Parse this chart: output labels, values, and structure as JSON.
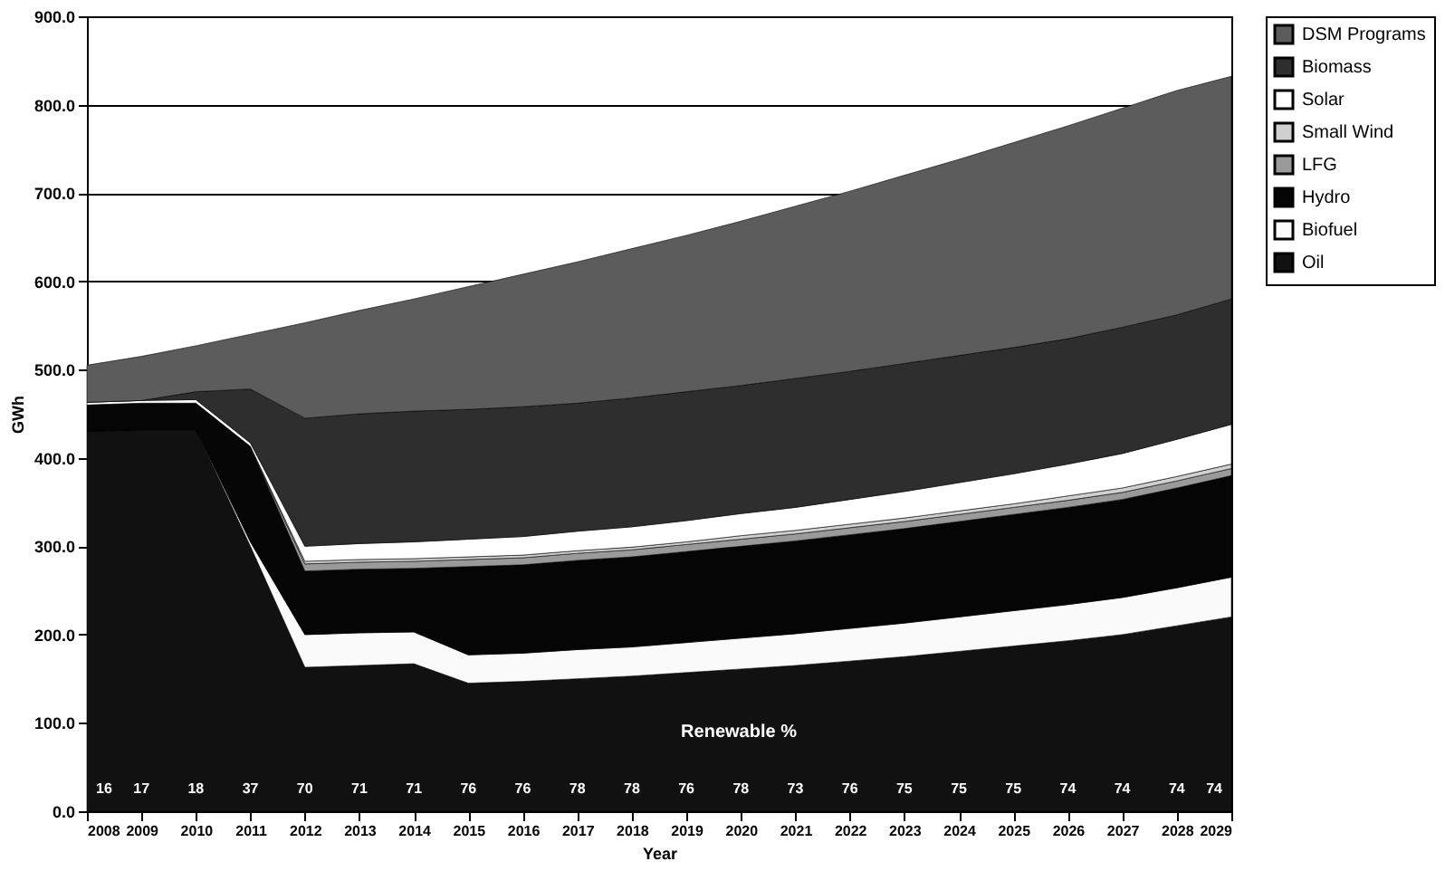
{
  "chart_data": {
    "type": "area",
    "stacked": true,
    "xlabel": "Year",
    "ylabel": "GWh",
    "x": [
      2008,
      2009,
      2010,
      2011,
      2012,
      2013,
      2014,
      2015,
      2016,
      2017,
      2018,
      2019,
      2020,
      2021,
      2022,
      2023,
      2024,
      2025,
      2026,
      2027,
      2028,
      2029
    ],
    "xlim": [
      2008,
      2029
    ],
    "xticks": [
      2008,
      2009,
      2010,
      2011,
      2012,
      2013,
      2014,
      2015,
      2016,
      2017,
      2018,
      2019,
      2020,
      2021,
      2022,
      2023,
      2024,
      2025,
      2026,
      2027,
      2028,
      2029
    ],
    "ylim": [
      0,
      900
    ],
    "yticks": [
      {
        "value": 0,
        "label": "0.0"
      },
      {
        "value": 100,
        "label": "100.0"
      },
      {
        "value": 200,
        "label": "200.0"
      },
      {
        "value": 300,
        "label": "300.0"
      },
      {
        "value": 400,
        "label": "400.0"
      },
      {
        "value": 500,
        "label": "500.0"
      },
      {
        "value": 600,
        "label": "600.0"
      },
      {
        "value": 700,
        "label": "700.0"
      },
      {
        "value": 800,
        "label": "800.0"
      },
      {
        "value": 900,
        "label": "900.0"
      }
    ],
    "grid": "y",
    "legend": "right",
    "series": [
      {
        "name": "Oil",
        "color": "#111111",
        "values": [
          430,
          432,
          432,
          300,
          163,
          165,
          167,
          145,
          147,
          150,
          153,
          157,
          161,
          165,
          170,
          175,
          181,
          187,
          193,
          200,
          210,
          220
        ]
      },
      {
        "name": "Biofuel",
        "color": "#fafafa",
        "values": [
          0,
          0,
          0,
          5,
          37,
          37,
          36,
          32,
          32,
          33,
          33,
          34,
          35,
          36,
          37,
          38,
          39,
          40,
          41,
          42,
          43,
          45
        ]
      },
      {
        "name": "Hydro",
        "color": "#050505",
        "values": [
          30,
          30,
          30,
          108,
          72,
          72,
          72,
          100,
          100,
          101,
          102,
          103,
          104,
          105,
          106,
          107,
          108,
          109,
          110,
          111,
          113,
          115
        ]
      },
      {
        "name": "LFG",
        "color": "#9a9a9a",
        "values": [
          0,
          0,
          0,
          0,
          8,
          8,
          8,
          8,
          8,
          8,
          8,
          8,
          8,
          8,
          8,
          8,
          8,
          8,
          8,
          8,
          8,
          8
        ]
      },
      {
        "name": "Small Wind",
        "color": "#d0d0d0",
        "values": [
          0,
          0,
          0,
          0,
          3,
          3,
          3,
          3,
          3,
          3,
          3,
          3,
          4,
          4,
          4,
          4,
          4,
          4,
          5,
          5,
          5,
          5
        ]
      },
      {
        "name": "Solar",
        "color": "#ffffff",
        "values": [
          3,
          3,
          4,
          4,
          17,
          18,
          19,
          20,
          21,
          22,
          23,
          24,
          25,
          26,
          28,
          30,
          32,
          34,
          36,
          39,
          42,
          45
        ]
      },
      {
        "name": "Biomass",
        "color": "#2e2e2e",
        "values": [
          0,
          0,
          9,
          61,
          145,
          147,
          148,
          147,
          147,
          145,
          146,
          146,
          145,
          146,
          145,
          145,
          144,
          143,
          142,
          143,
          141,
          142
        ]
      },
      {
        "name": "DSM Programs",
        "color": "#5c5c5c",
        "values": [
          42,
          50,
          52,
          62,
          108,
          117,
          127,
          139,
          150,
          160,
          169,
          177,
          186,
          195,
          204,
          213,
          222,
          232,
          241,
          248,
          254,
          252
        ]
      }
    ],
    "annotations": [
      "Renewable %",
      "16",
      "17",
      "18",
      "37",
      "70",
      "71",
      "71",
      "76",
      "76",
      "78",
      "78",
      "76",
      "78",
      "73",
      "76",
      "75",
      "75",
      "75",
      "74",
      "74",
      "74",
      "74"
    ]
  }
}
